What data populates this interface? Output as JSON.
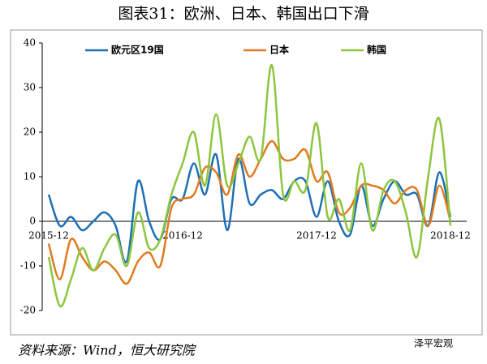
{
  "chart_data": {
    "type": "line",
    "title": "图表31：欧洲、日本、韩国出口下滑",
    "source": "资料来源：Wind，恒大研究院",
    "watermark": "泽平宏观",
    "categories": [
      "2015-12",
      null,
      null,
      null,
      null,
      null,
      null,
      null,
      null,
      null,
      null,
      null,
      "2016-12",
      null,
      null,
      null,
      null,
      null,
      null,
      null,
      null,
      null,
      null,
      null,
      "2017-12",
      null,
      null,
      null,
      null,
      null,
      null,
      null,
      null,
      null,
      null,
      null,
      "2018-12"
    ],
    "ylim": [
      -20,
      40
    ],
    "yticks": [
      -20,
      -10,
      0,
      10,
      20,
      30,
      40
    ],
    "legend": "top",
    "series": [
      {
        "name": "欧元区19国",
        "color": "#1f6fb5",
        "values": [
          6,
          -1,
          1,
          -2,
          0,
          2,
          -1,
          -9,
          9,
          0,
          -4,
          5,
          5,
          13,
          6,
          15,
          -2,
          14,
          4,
          6,
          7,
          5,
          9,
          9,
          1,
          9,
          0,
          -3,
          8,
          -1,
          5,
          9,
          6,
          6,
          -1,
          11,
          1
        ]
      },
      {
        "name": "日本",
        "color": "#e07b1f",
        "values": [
          -5,
          -13,
          -4,
          -8,
          -11,
          -9,
          -11,
          -14,
          -9,
          -7,
          -10,
          3,
          5,
          6,
          12,
          11,
          6,
          15,
          10,
          14,
          18,
          14,
          14,
          16,
          9,
          11,
          2,
          3,
          8,
          8,
          7,
          4,
          7,
          7,
          -1,
          8,
          0
        ]
      },
      {
        "name": "韩国",
        "color": "#8cc63f",
        "values": [
          -8,
          -19,
          -13,
          -6,
          -11,
          -6,
          -3,
          -10,
          2,
          -6,
          -4,
          6,
          13,
          20,
          8,
          24,
          8,
          13,
          19,
          14,
          35,
          6,
          9,
          7,
          22,
          1,
          5,
          -2,
          13,
          -2,
          7,
          9,
          2,
          -8,
          10,
          23,
          -1
        ]
      }
    ]
  }
}
